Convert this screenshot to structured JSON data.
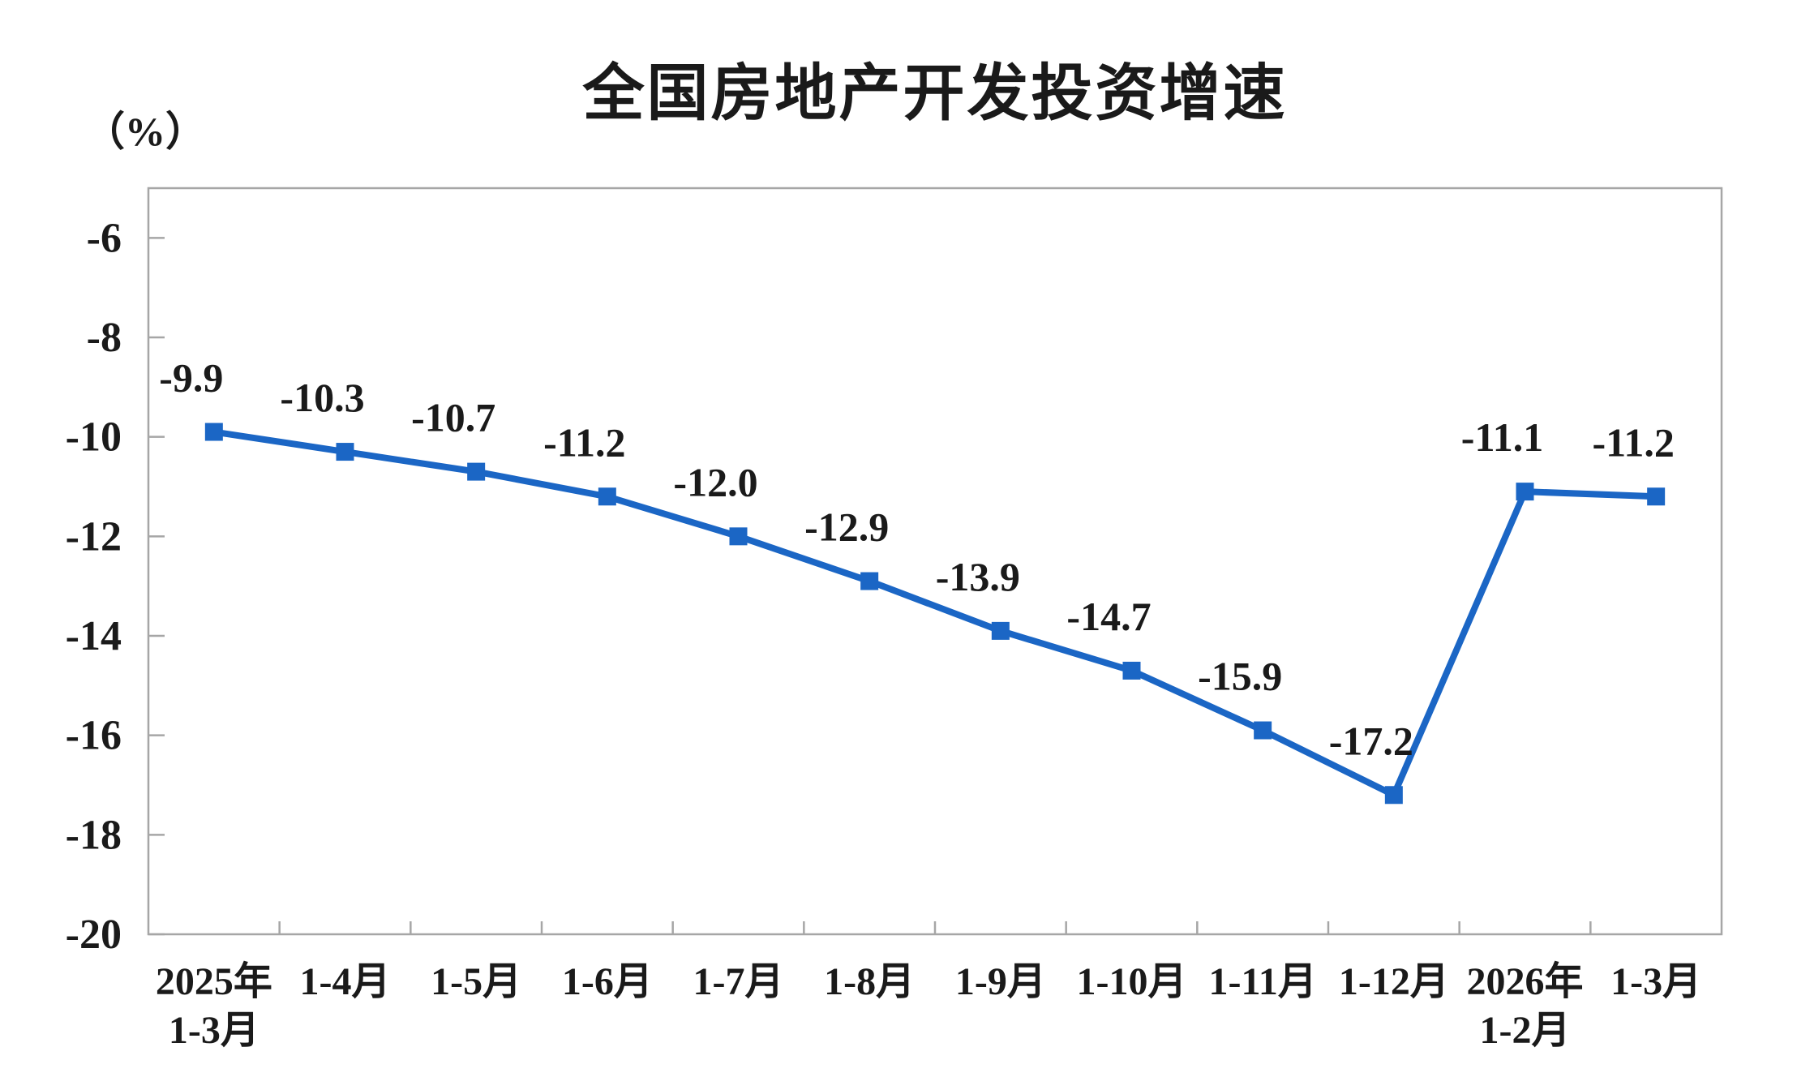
{
  "chart_data": {
    "type": "line",
    "title": "全国房地产开发投资增速",
    "unit_label": "（%）",
    "categories": [
      "2025年\n1-3月",
      "1-4月",
      "1-5月",
      "1-6月",
      "1-7月",
      "1-8月",
      "1-9月",
      "1-10月",
      "1-11月",
      "1-12月",
      "2026年\n1-2月",
      "1-3月"
    ],
    "values": [
      -9.9,
      -10.3,
      -10.7,
      -11.2,
      -12.0,
      -12.9,
      -13.9,
      -14.7,
      -15.9,
      -17.2,
      -11.1,
      -11.2
    ],
    "data_labels": [
      "-9.9",
      "-10.3",
      "-10.7",
      "-11.2",
      "-12.0",
      "-12.9",
      "-13.9",
      "-14.7",
      "-15.9",
      "-17.2",
      "-11.1",
      "-11.2"
    ],
    "ylim": [
      -20,
      -5
    ],
    "yticks": [
      -6,
      -8,
      -10,
      -12,
      -14,
      -16,
      -18,
      -20
    ],
    "grid": false,
    "legend_position": "none",
    "marker": "square",
    "line_color": "#1B66C5",
    "axis_color": "#a6a6a6",
    "text_color": "#1a1a1a"
  }
}
